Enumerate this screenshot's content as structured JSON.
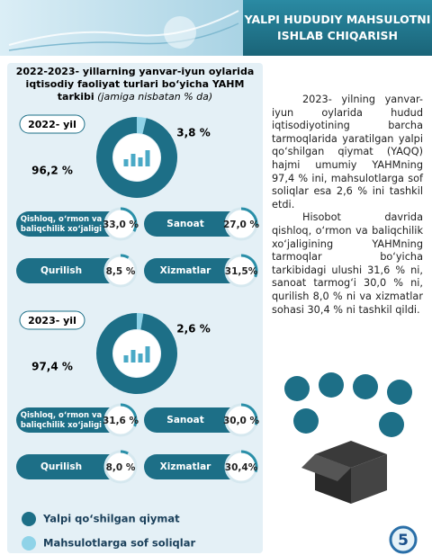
{
  "header": {
    "title_lines": [
      "YALPI HUDUDIY MAHSULOTNI",
      "ISHLAB CHIQARISH"
    ]
  },
  "panel": {
    "title_lines": [
      "2022-2023- yillarning yanvar-iyun oylarida",
      "iqtisodiy faoliyat turlari bo‘yicha YAHM",
      "tarkibi"
    ],
    "note": "(jamiga nisbatan % da)"
  },
  "years": [
    {
      "label": "2022- yil",
      "gva": 96.2,
      "gva_label": "96,2 %",
      "tax": 3.8,
      "tax_label": "3,8 %",
      "sectors": [
        {
          "name": [
            "Qishloq, o‘rmon va",
            "baliqchilik xo‘jaligi"
          ],
          "value": 33.0,
          "label": "33,0 %"
        },
        {
          "name": [
            "Sanoat"
          ],
          "value": 27.0,
          "label": "27,0 %"
        },
        {
          "name": [
            "Qurilish"
          ],
          "value": 8.5,
          "label": "8,5 %"
        },
        {
          "name": [
            "Xizmatlar"
          ],
          "value": 31.5,
          "label": "31,5%"
        }
      ]
    },
    {
      "label": "2023- yil",
      "gva": 97.4,
      "gva_label": "97,4 %",
      "tax": 2.6,
      "tax_label": "2,6 %",
      "sectors": [
        {
          "name": [
            "Qishloq, o‘rmon va",
            "baliqchilik xo‘jaligi"
          ],
          "value": 31.6,
          "label": "31,6 %"
        },
        {
          "name": [
            "Sanoat"
          ],
          "value": 30.0,
          "label": "30,0 %"
        },
        {
          "name": [
            "Qurilish"
          ],
          "value": 8.0,
          "label": "8,0 %"
        },
        {
          "name": [
            "Xizmatlar"
          ],
          "value": 30.4,
          "label": "30,4%"
        }
      ]
    }
  ],
  "legend": [
    "Yalpi qo‘shilgan qiymat",
    "Mahsulotlarga sof soliqlar"
  ],
  "paragraphs": [
    "2023- yilning yanvar-iyun oylarida hudud iqtisodiyotining barcha tarmoqlarida yaratilgan yalpi qo‘shilgan qiymat (YAQQ) hajmi umumiy YAHMning 97,4 % ini, mahsulotlarga sof soliqlar esa 2,6 % ini tashkil etdi.",
    "Hisobot davrida qishloq, o‘rmon va baliqchilik xo‘jaligining YAHMning tarmoqlar bo‘yicha tarkibidagi ulushi 31,6 % ni, sanoat tarmog‘i 30,0 % ni, qurilish 8,0 % ni va xizmatlar sohasi 30,4 % ni tashkil qildi."
  ],
  "page_number": "5"
}
